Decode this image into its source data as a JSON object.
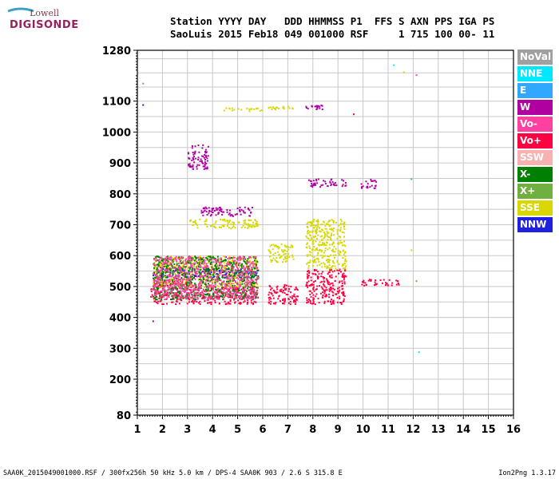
{
  "logo": {
    "line1": "Lowell",
    "line2": "DIGISONDE"
  },
  "header": {
    "line1": "Station YYYY DAY   DDD HHMMSS P1  FFS S AXN PPS IGA PS",
    "line2": "SaoLuis 2015 Feb18 049 001000 RSF     1 715 100 00- 11"
  },
  "legend": [
    {
      "label": "NoVal",
      "color": "#a0a0a0"
    },
    {
      "label": "NNE",
      "color": "#00e8ff"
    },
    {
      "label": "E",
      "color": "#30a8ff"
    },
    {
      "label": "W",
      "color": "#b000a0"
    },
    {
      "label": "Vo-",
      "color": "#ff40a0"
    },
    {
      "label": "Vo+",
      "color": "#ff0040"
    },
    {
      "label": "SSW",
      "color": "#f8b0b0"
    },
    {
      "label": "X-",
      "color": "#008000"
    },
    {
      "label": "X+",
      "color": "#70b040"
    },
    {
      "label": "SSE",
      "color": "#d8d800"
    },
    {
      "label": "NNW",
      "color": "#2020e0"
    }
  ],
  "footer": {
    "left": "SAA0K_2015049001000.RSF / 300fx256h 50 kHz 5.0 km / DPS-4 SAA0K 903 / 2.6 S 315.8 E",
    "right": "Ion2Png 1.3.17"
  },
  "chart_data": {
    "type": "scatter",
    "xlim": [
      1,
      16
    ],
    "ylim": [
      80,
      1280
    ],
    "xticks": [
      "1",
      "2",
      "3",
      "4",
      "5",
      "6",
      "7",
      "8",
      "9",
      "10",
      "11",
      "12",
      "13",
      "14",
      "15",
      "16"
    ],
    "yticks": [
      "80",
      "200",
      "300",
      "400",
      "500",
      "600",
      "700",
      "800",
      "900",
      "1000",
      "1100",
      "1280"
    ],
    "grid": true,
    "clusters": [
      {
        "x": [
          1.5,
          3.0
        ],
        "y": [
          445,
          520
        ],
        "color": "#ff0040"
      },
      {
        "x": [
          3.0,
          5.8
        ],
        "y": [
          445,
          500
        ],
        "color": "#ff0040"
      },
      {
        "x": [
          6.2,
          7.4
        ],
        "y": [
          445,
          510
        ],
        "color": "#ff0040"
      },
      {
        "x": [
          7.7,
          9.3
        ],
        "y": [
          445,
          560
        ],
        "color": "#ff0040"
      },
      {
        "x": [
          9.8,
          11.4
        ],
        "y": [
          505,
          525
        ],
        "color": "#ff0040"
      },
      {
        "x": [
          1.6,
          5.8
        ],
        "y": [
          500,
          600
        ],
        "color": "#d8d800"
      },
      {
        "x": [
          3.0,
          5.8
        ],
        "y": [
          690,
          720
        ],
        "color": "#d8d800"
      },
      {
        "x": [
          7.7,
          9.3
        ],
        "y": [
          560,
          720
        ],
        "color": "#d8d800"
      },
      {
        "x": [
          6.2,
          7.2
        ],
        "y": [
          580,
          640
        ],
        "color": "#d8d800"
      },
      {
        "x": [
          1.6,
          5.8
        ],
        "y": [
          530,
          560
        ],
        "color": "#2020e0"
      },
      {
        "x": [
          3.5,
          5.6
        ],
        "y": [
          730,
          760
        ],
        "color": "#b000a0"
      },
      {
        "x": [
          7.8,
          9.3
        ],
        "y": [
          825,
          850
        ],
        "color": "#b000a0"
      },
      {
        "x": [
          9.9,
          10.5
        ],
        "y": [
          820,
          850
        ],
        "color": "#b000a0"
      },
      {
        "x": [
          7.7,
          8.4
        ],
        "y": [
          1075,
          1090
        ],
        "color": "#b000a0"
      },
      {
        "x": [
          6.2,
          7.2
        ],
        "y": [
          1075,
          1085
        ],
        "color": "#d8d800"
      },
      {
        "x": [
          4.4,
          6.0
        ],
        "y": [
          1070,
          1080
        ],
        "color": "#d8d800"
      },
      {
        "x": [
          3.0,
          3.8
        ],
        "y": [
          880,
          960
        ],
        "color": "#b000a0"
      },
      {
        "x": [
          1.6,
          5.8
        ],
        "y": [
          460,
          600
        ],
        "color": "#008000"
      },
      {
        "x": [
          1.6,
          5.8
        ],
        "y": [
          460,
          600
        ],
        "color": "#ff40a0"
      }
    ],
    "points": [
      {
        "x": 1.2,
        "y": 1090,
        "color": "#2020e0"
      },
      {
        "x": 1.2,
        "y": 1165,
        "color": "#70b040"
      },
      {
        "x": 11.2,
        "y": 1230,
        "color": "#00e8ff"
      },
      {
        "x": 11.6,
        "y": 1205,
        "color": "#d8d800"
      },
      {
        "x": 12.1,
        "y": 1195,
        "color": "#ff40a0"
      },
      {
        "x": 12.2,
        "y": 290,
        "color": "#00e8ff"
      },
      {
        "x": 1.6,
        "y": 390,
        "color": "#b000a0"
      },
      {
        "x": 11.9,
        "y": 850,
        "color": "#30a8ff"
      },
      {
        "x": 12.1,
        "y": 520,
        "color": "#70b040"
      },
      {
        "x": 11.9,
        "y": 620,
        "color": "#d8d800"
      },
      {
        "x": 9.6,
        "y": 1060,
        "color": "#ff0040"
      }
    ]
  }
}
